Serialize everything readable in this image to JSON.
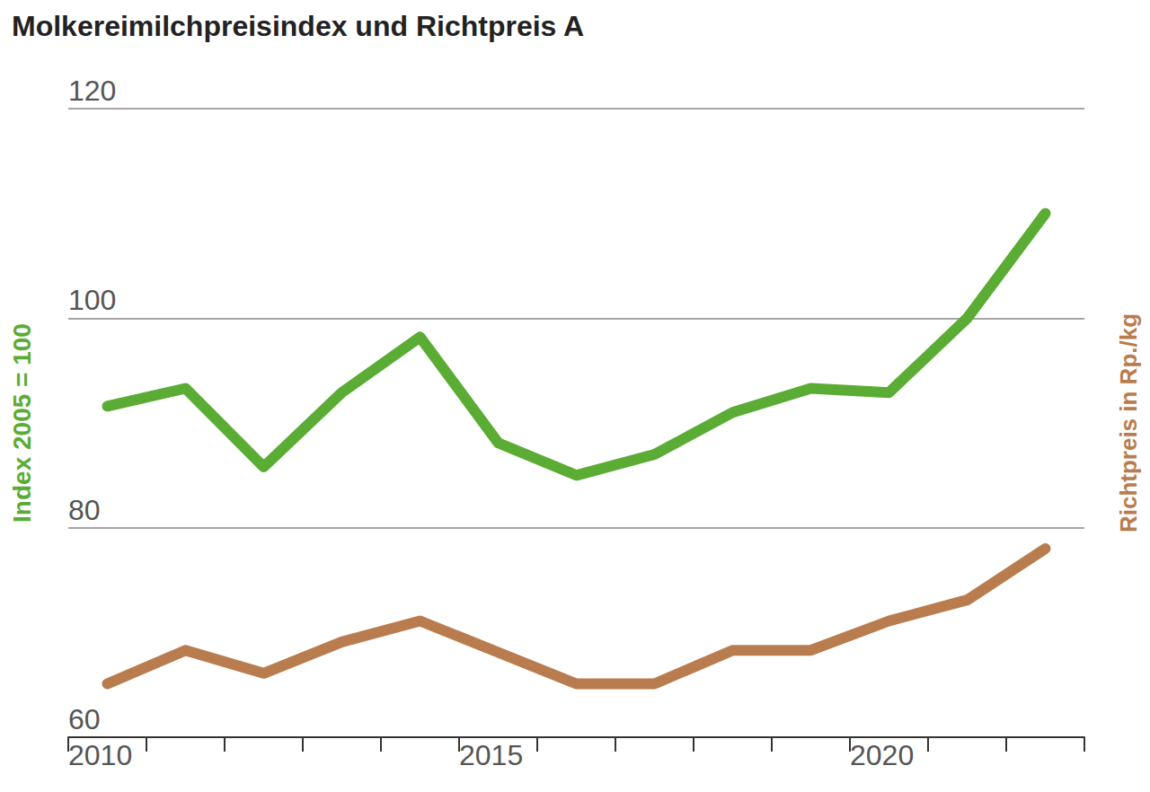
{
  "chart_data": {
    "type": "line",
    "title": "Molkereimilchpreisindex und Richtpreis A",
    "ylabel": "Index 2005 = 100",
    "y2label": "Richtpreis in Rp./kg",
    "x": [
      2010.5,
      2011.5,
      2012.5,
      2013.5,
      2014.5,
      2015.5,
      2016.5,
      2017.5,
      2018.5,
      2019.5,
      2020.5,
      2021.5,
      2022.5
    ],
    "series": [
      {
        "color": "#5aac34",
        "values": [
          91.6,
          93.3,
          85.8,
          92.9,
          98.2,
          88.1,
          85.0,
          87.0,
          91.0,
          93.3,
          92.9,
          100.0,
          110.0
        ]
      },
      {
        "color": "#b97c4e",
        "values": [
          65.1,
          68.3,
          66.1,
          69.1,
          71.1,
          68.1,
          65.1,
          65.1,
          68.3,
          68.3,
          71.1,
          73.1,
          78.0
        ]
      }
    ],
    "xlim": [
      2010,
      2023
    ],
    "xticks": [
      2010,
      2015,
      2020
    ],
    "ylim": [
      60,
      120
    ],
    "yticks": [
      60,
      80,
      100,
      120
    ],
    "grid": true
  }
}
